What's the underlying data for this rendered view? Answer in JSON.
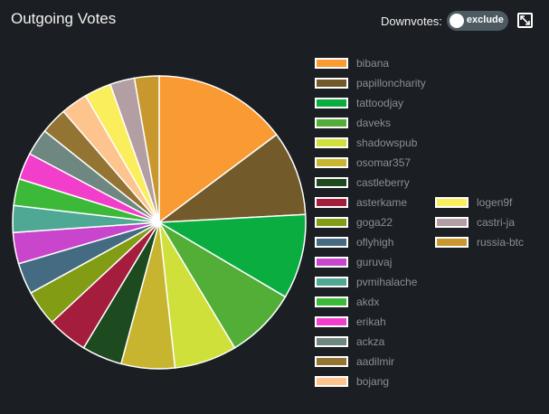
{
  "header": {
    "title": "Outgoing Votes",
    "downvotes_label": "Downvotes:",
    "toggle_value": "exclude"
  },
  "icons": {
    "expand": "expand-icon"
  },
  "chart_data": {
    "type": "pie",
    "title": "Outgoing Votes",
    "legend_position": "right",
    "slices": [
      {
        "label": "bibana",
        "value": 15.0,
        "color": "#f99a33"
      },
      {
        "label": "papilloncharity",
        "value": 9.5,
        "color": "#735a2a"
      },
      {
        "label": "tattoodjay",
        "value": 9.5,
        "color": "#0aad40"
      },
      {
        "label": "daveks",
        "value": 8.0,
        "color": "#52ae37"
      },
      {
        "label": "shadowspub",
        "value": 7.0,
        "color": "#cfe03b"
      },
      {
        "label": "osomar357",
        "value": 6.0,
        "color": "#c7b530"
      },
      {
        "label": "castleberry",
        "value": 4.5,
        "color": "#1e4a1f"
      },
      {
        "label": "asterkame",
        "value": 4.5,
        "color": "#a51d3c"
      },
      {
        "label": "goga22",
        "value": 4.0,
        "color": "#829c14"
      },
      {
        "label": "oflyhigh",
        "value": 3.5,
        "color": "#456b83"
      },
      {
        "label": "guruvaj",
        "value": 3.5,
        "color": "#c945cc"
      },
      {
        "label": "pvmihalache",
        "value": 3.0,
        "color": "#4ea893"
      },
      {
        "label": "akdx",
        "value": 3.0,
        "color": "#3db93a"
      },
      {
        "label": "erikah",
        "value": 3.0,
        "color": "#f23fcb"
      },
      {
        "label": "ackza",
        "value": 3.0,
        "color": "#6e8781"
      },
      {
        "label": "aadilmir",
        "value": 3.0,
        "color": "#937432"
      },
      {
        "label": "bojang",
        "value": 3.0,
        "color": "#fdc48e"
      },
      {
        "label": "logen9f",
        "value": 3.0,
        "color": "#fbee5d"
      },
      {
        "label": "castri-ja",
        "value": 2.75,
        "color": "#b29ea3"
      },
      {
        "label": "russia-btc",
        "value": 2.75,
        "color": "#c8982e"
      }
    ]
  }
}
